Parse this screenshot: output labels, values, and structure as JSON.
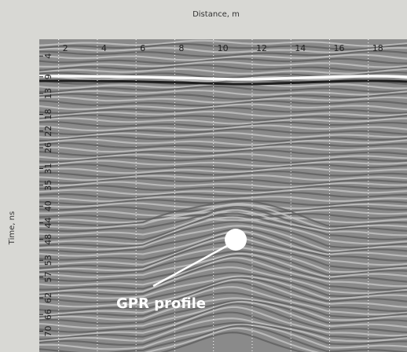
{
  "chart_data": {
    "type": "radargram",
    "title": "Distance, m",
    "y_label": "Time, ns",
    "annotation": "GPR profile",
    "xlim": [
      1,
      20
    ],
    "xticks": [
      2,
      4,
      6,
      8,
      10,
      12,
      14,
      16,
      18
    ],
    "ylim": [
      0,
      75
    ],
    "yticks": [
      4,
      9,
      13,
      18,
      22,
      26,
      31,
      35,
      40,
      44,
      48,
      53,
      57,
      62,
      66,
      70
    ],
    "grid": true
  }
}
